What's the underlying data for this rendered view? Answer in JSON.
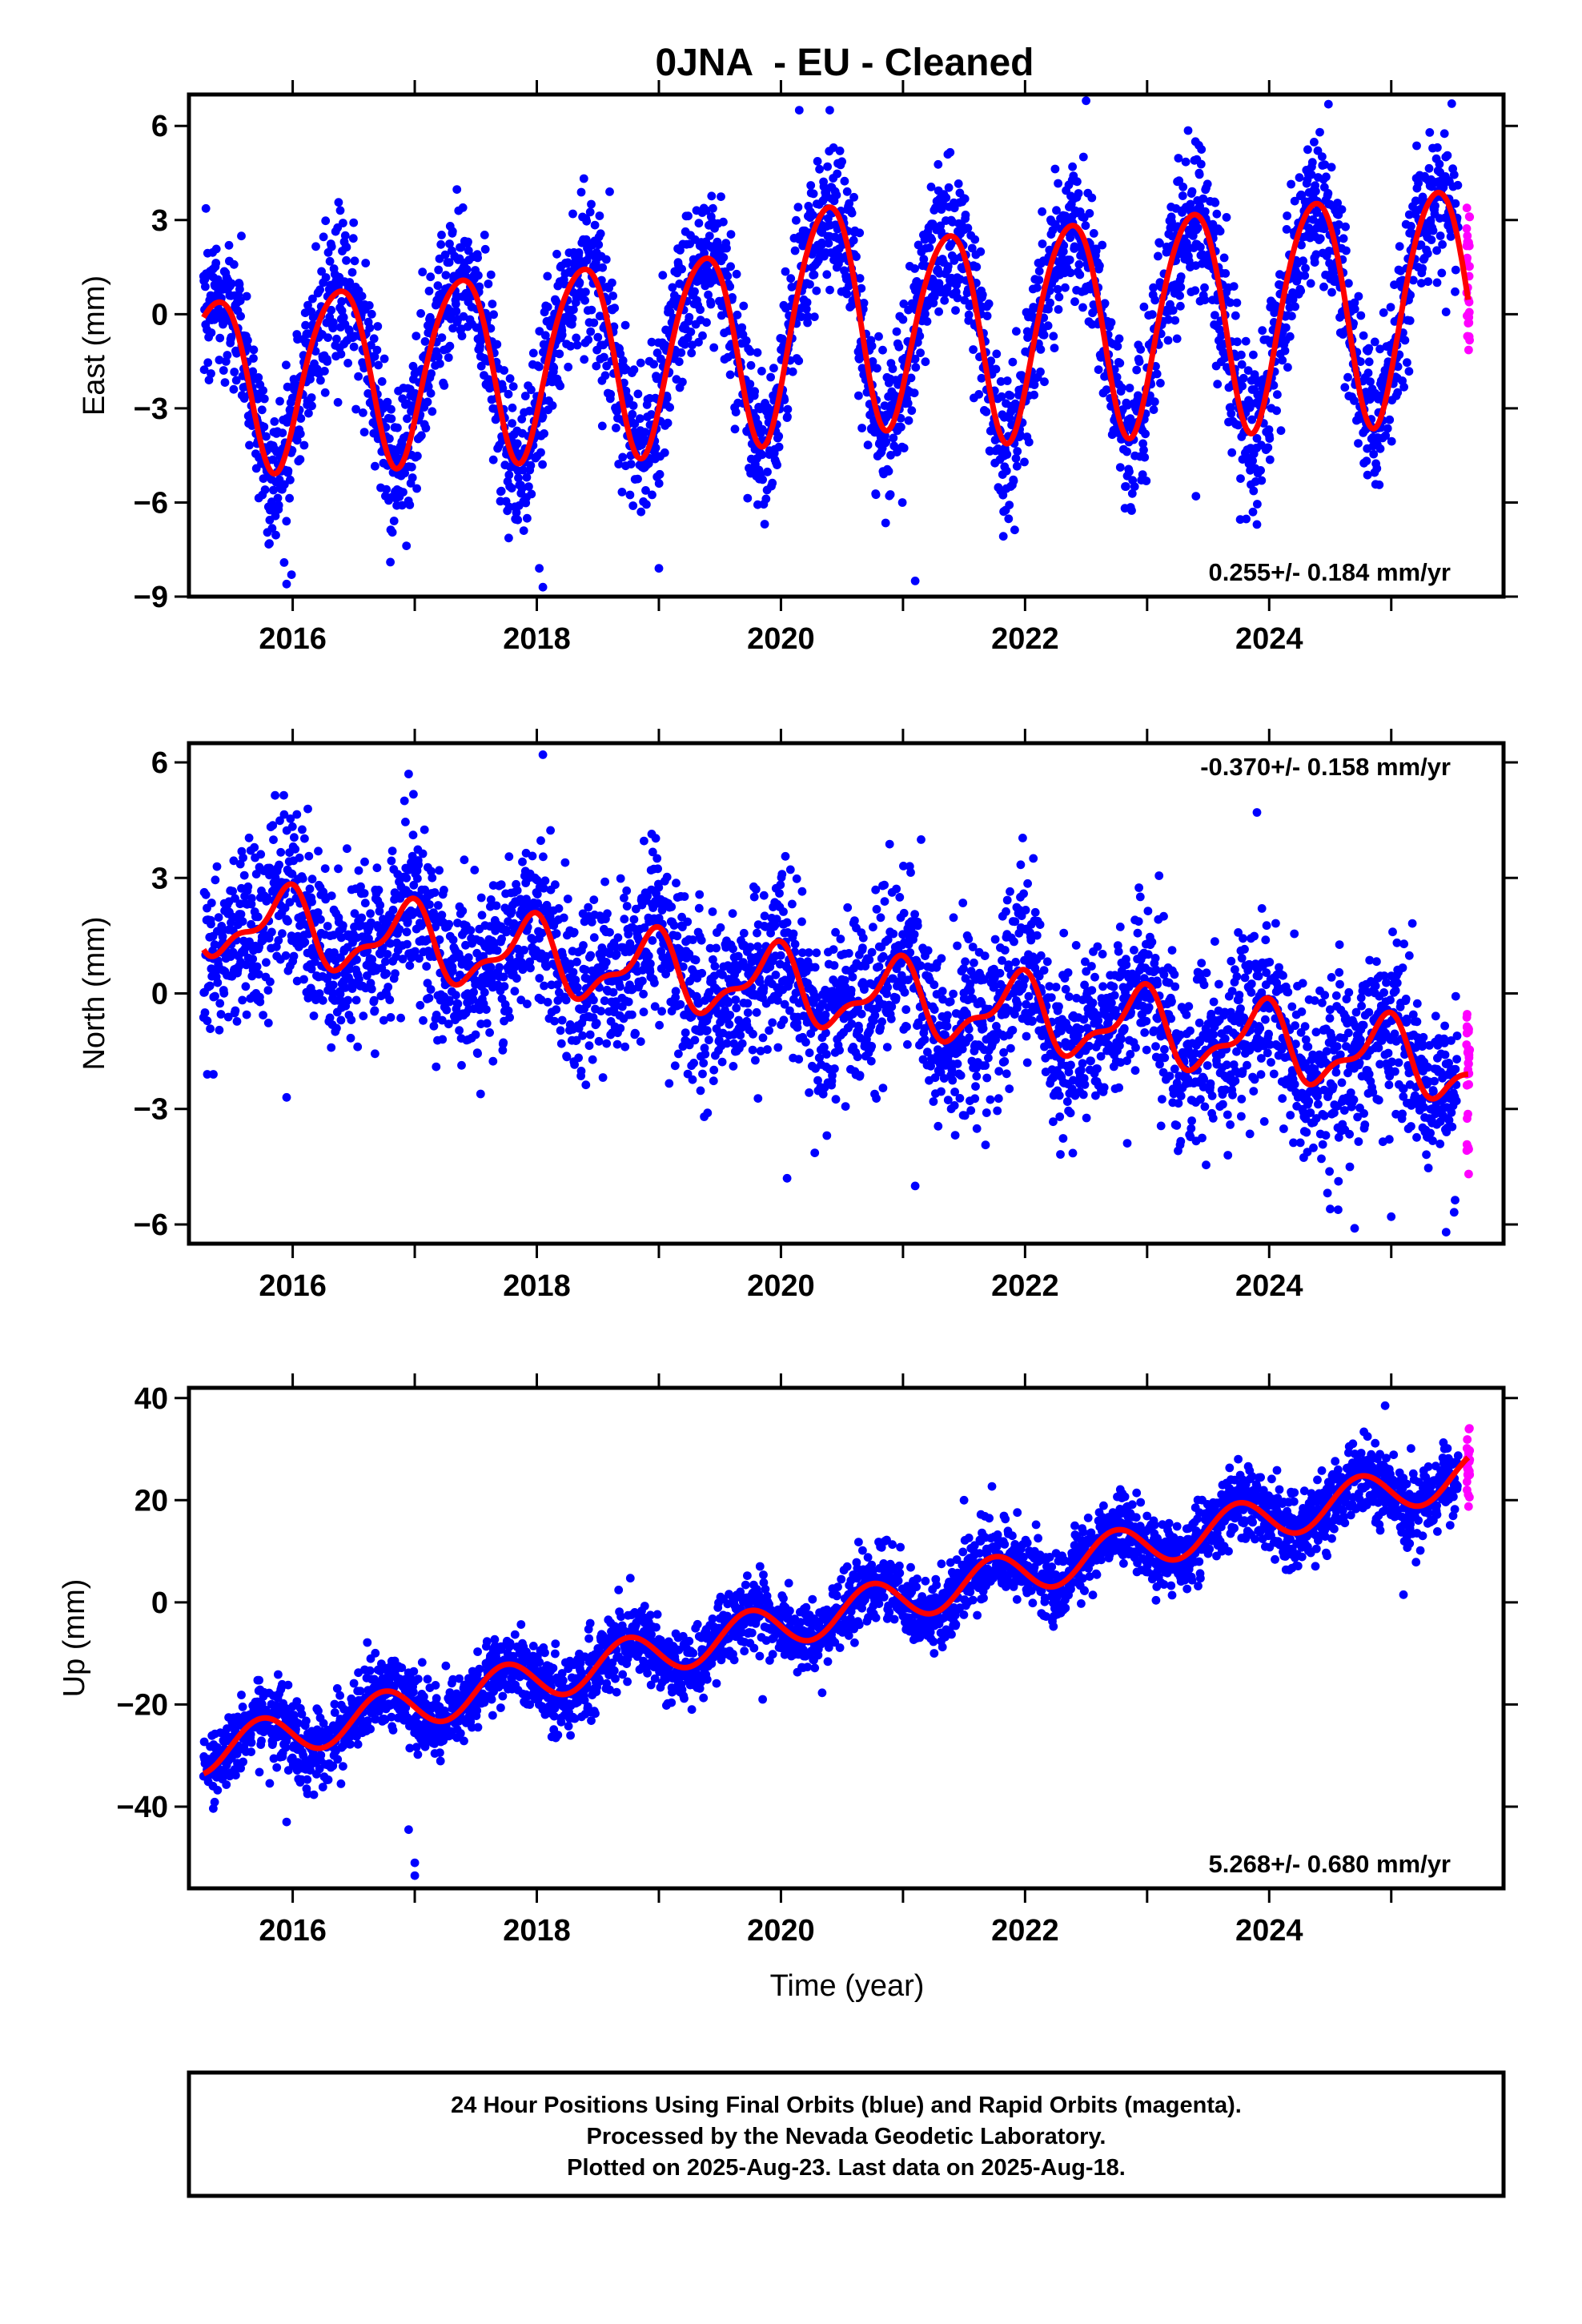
{
  "figure": {
    "title": "0JNA  - EU - Cleaned",
    "footer": [
      "24 Hour Positions Using Final Orbits (blue) and Rapid Orbits (magenta).",
      "Processed by the Nevada Geodetic Laboratory.",
      "Plotted on 2025-Aug-23. Last data on 2025-Aug-18."
    ]
  },
  "colors": {
    "final_orbits": "#0000ff",
    "rapid_orbits": "#ff00ff",
    "model_fit": "#ff0000",
    "frame": "#000000"
  },
  "chart_data": [
    {
      "type": "scatter",
      "component": "East",
      "ylabel": "East (mm)",
      "xlabel": "",
      "xlim": [
        2015.15,
        2025.92
      ],
      "ylim": [
        -9,
        7
      ],
      "xticks": [
        2016,
        2018,
        2020,
        2022,
        2024
      ],
      "yticks": [
        6,
        3,
        0,
        -3,
        -6,
        -9
      ],
      "ytick_labels": [
        "6",
        "3",
        "0",
        "−3",
        "−6",
        "−9"
      ],
      "rate_text": "0.255+/- 0.184 mm/yr",
      "rate_position": "bottom-right",
      "data_span": [
        2015.27,
        2025.63
      ],
      "rapid_span": [
        2025.55,
        2025.63
      ],
      "model": {
        "offset": -0.9,
        "rate": 0.255,
        "ref_year": 2020.0,
        "annual_sin": 2.4,
        "annual_cos": -2.1,
        "semiannual_sin": 0.3,
        "semiannual_cos": 0.2,
        "amp_growth": 0.03,
        "excursions": [
          {
            "center": 2020.45,
            "width": 0.45,
            "amp": 1.3
          }
        ]
      },
      "scatter_sigma": 1.2,
      "outliers": [
        {
          "x": 2015.95,
          "y": -8.6
        },
        {
          "x": 2015.99,
          "y": -8.3
        },
        {
          "x": 2016.8,
          "y": -7.9
        },
        {
          "x": 2018.05,
          "y": -8.7
        },
        {
          "x": 2018.02,
          "y": -8.1
        },
        {
          "x": 2019.0,
          "y": -8.1
        },
        {
          "x": 2021.1,
          "y": -8.5
        },
        {
          "x": 2023.4,
          "y": -5.8
        },
        {
          "x": 2022.5,
          "y": 6.8
        },
        {
          "x": 2020.15,
          "y": 6.5
        },
        {
          "x": 2020.4,
          "y": 6.5
        },
        {
          "x": 2023.9,
          "y": -6.7
        }
      ]
    },
    {
      "type": "scatter",
      "component": "North",
      "ylabel": "North (mm)",
      "xlabel": "",
      "xlim": [
        2015.15,
        2025.92
      ],
      "ylim": [
        -6.5,
        6.5
      ],
      "xticks": [
        2016,
        2018,
        2020,
        2022,
        2024
      ],
      "yticks": [
        6,
        3,
        0,
        -3,
        -6
      ],
      "ytick_labels": [
        "6",
        "3",
        "0",
        "−3",
        "−6"
      ],
      "rate_text": "-0.370+/- 0.158 mm/yr",
      "rate_position": "top-right",
      "data_span": [
        2015.27,
        2025.63
      ],
      "rapid_span": [
        2025.55,
        2025.63
      ],
      "model": {
        "offset": 0.2,
        "rate": -0.37,
        "ref_year": 2020.0,
        "annual_sin": -0.35,
        "annual_cos": 0.8,
        "semiannual_sin": 0.1,
        "semiannual_cos": 0.35,
        "amp_growth": 0.0,
        "excursions": []
      },
      "scatter_sigma": 1.1,
      "outliers": [
        {
          "x": 2018.05,
          "y": 6.2
        },
        {
          "x": 2015.95,
          "y": -2.7
        },
        {
          "x": 2015.3,
          "y": -2.1
        },
        {
          "x": 2015.35,
          "y": -2.1
        },
        {
          "x": 2024.5,
          "y": -5.6
        },
        {
          "x": 2024.7,
          "y": -6.1
        },
        {
          "x": 2025.0,
          "y": -5.8
        },
        {
          "x": 2025.45,
          "y": -6.2
        },
        {
          "x": 2023.9,
          "y": 4.7
        },
        {
          "x": 2016.95,
          "y": 5.7
        },
        {
          "x": 2021.1,
          "y": -5.0
        },
        {
          "x": 2020.05,
          "y": -4.8
        }
      ]
    },
    {
      "type": "scatter",
      "component": "Up",
      "ylabel": "Up (mm)",
      "xlabel": "Time (year)",
      "xlim": [
        2015.15,
        2025.92
      ],
      "ylim": [
        -56,
        42
      ],
      "xticks": [
        2016,
        2018,
        2020,
        2022,
        2024
      ],
      "yticks": [
        40,
        20,
        0,
        -20,
        -40
      ],
      "ytick_labels": [
        "40",
        "20",
        "0",
        "−20",
        "−40"
      ],
      "rate_text": "5.268+/- 0.680 mm/yr",
      "rate_position": "bottom-right",
      "data_span": [
        2015.27,
        2025.63
      ],
      "rapid_span": [
        2025.55,
        2025.63
      ],
      "model": {
        "offset": -4.5,
        "rate": 5.268,
        "ref_year": 2020.0,
        "annual_sin": -4.2,
        "annual_cos": -0.2,
        "semiannual_sin": 0.0,
        "semiannual_cos": 0.0,
        "amp_growth": 0.0,
        "excursions": []
      },
      "scatter_sigma": 3.6,
      "outliers": [
        {
          "x": 2017.0,
          "y": -53.5
        },
        {
          "x": 2017.0,
          "y": -51.0
        },
        {
          "x": 2016.95,
          "y": -44.5
        },
        {
          "x": 2015.95,
          "y": -43.0
        },
        {
          "x": 2025.1,
          "y": 1.5
        },
        {
          "x": 2024.95,
          "y": 38.5
        },
        {
          "x": 2019.85,
          "y": -19.0
        },
        {
          "x": 2021.5,
          "y": 20.0
        }
      ]
    }
  ]
}
